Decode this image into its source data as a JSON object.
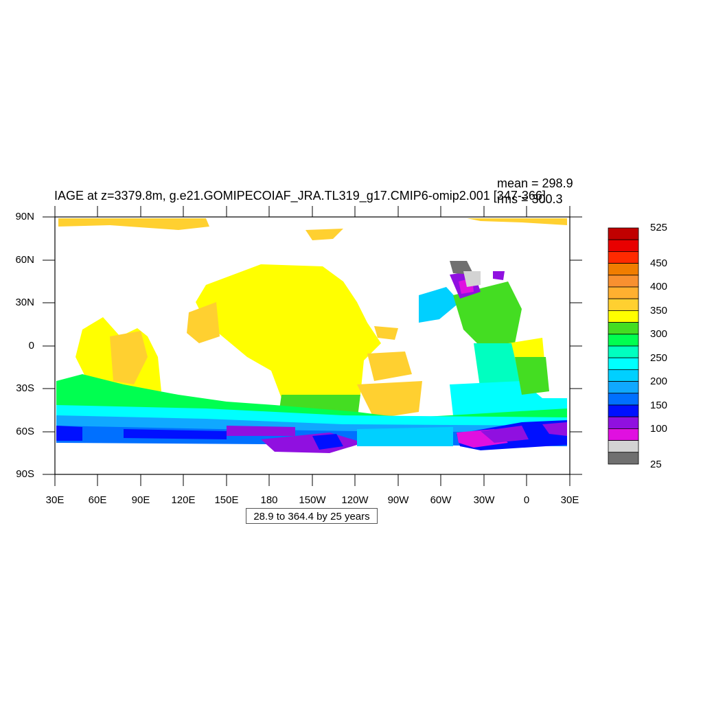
{
  "map": {
    "title": "IAGE at z=3379.8m, g.e21.GOMIPECOIAF_JRA.TL319_g17.CMIP6-omip2.001 [347-366]",
    "stats": {
      "mean": "mean = 298.9",
      "rms": "rms = 300.3"
    },
    "lat_labels": [
      "90N",
      "60N",
      "30N",
      "0",
      "30S",
      "60S",
      "90S"
    ],
    "lon_labels": [
      "30E",
      "60E",
      "90E",
      "120E",
      "150E",
      "180",
      "150W",
      "120W",
      "90W",
      "60W",
      "30W",
      "0",
      "30E"
    ],
    "range_note": "28.9 to 364.4 by 25 years",
    "colorbar": {
      "labels": [
        "525",
        "450",
        "400",
        "350",
        "300",
        "250",
        "200",
        "150",
        "100",
        "25"
      ],
      "colors": [
        "#c00000",
        "#e80000",
        "#ff2a00",
        "#f07d00",
        "#f89030",
        "#ffb030",
        "#ffd030",
        "#ffff00",
        "#44dd22",
        "#00ff50",
        "#00ffc0",
        "#00ffff",
        "#00d0ff",
        "#10a8ff",
        "#0070ff",
        "#0010ff",
        "#9010e0",
        "#e010e0",
        "#d3d3d3",
        "#707070"
      ]
    },
    "land_color": "#ffffff"
  }
}
